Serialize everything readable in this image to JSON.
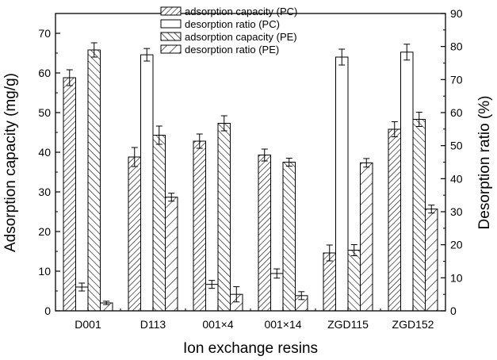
{
  "chart_data": {
    "type": "bar",
    "xlabel": "Ion exchange resins",
    "ylabel": "Adsorption capacity (mg/g)",
    "y2label": "Desorption ratio (%)",
    "ylim": [
      0,
      75
    ],
    "y2lim": [
      0,
      90
    ],
    "yticks": [
      0,
      10,
      20,
      30,
      40,
      50,
      60,
      70
    ],
    "y2ticks": [
      0,
      10,
      20,
      30,
      40,
      50,
      60,
      70,
      80,
      90
    ],
    "categories": [
      "D001",
      "D113",
      "001×4",
      "001×14",
      "ZGD115",
      "ZGD152"
    ],
    "legend_position": "top-center",
    "grid": false,
    "series": [
      {
        "name": "adsorption capacity (PC)",
        "axis": "left",
        "pattern": "hatch-forward",
        "values": [
          58.8,
          38.8,
          42.8,
          39.3,
          14.6,
          45.8
        ],
        "errors": [
          2.0,
          2.4,
          1.8,
          1.5,
          2.0,
          1.9
        ]
      },
      {
        "name": "desorption ratio (PC)",
        "axis": "right",
        "pattern": "none",
        "values": [
          7.2,
          77.5,
          8.0,
          11.3,
          76.8,
          78.3
        ],
        "errors": [
          1.2,
          1.9,
          1.2,
          1.4,
          2.4,
          2.4
        ]
      },
      {
        "name": "adsorption capacity (PE)",
        "axis": "left",
        "pattern": "hatch-back",
        "values": [
          65.8,
          44.3,
          47.3,
          37.5,
          15.3,
          48.3
        ],
        "errors": [
          1.8,
          2.3,
          1.9,
          1.0,
          1.4,
          1.8
        ]
      },
      {
        "name": "desorption ratio (PE)",
        "axis": "right",
        "pattern": "hatch-forward-sparse",
        "values": [
          2.4,
          34.4,
          5.0,
          4.6,
          44.8,
          30.8
        ],
        "errors": [
          0.5,
          1.2,
          2.3,
          1.2,
          1.3,
          1.2
        ]
      }
    ]
  }
}
